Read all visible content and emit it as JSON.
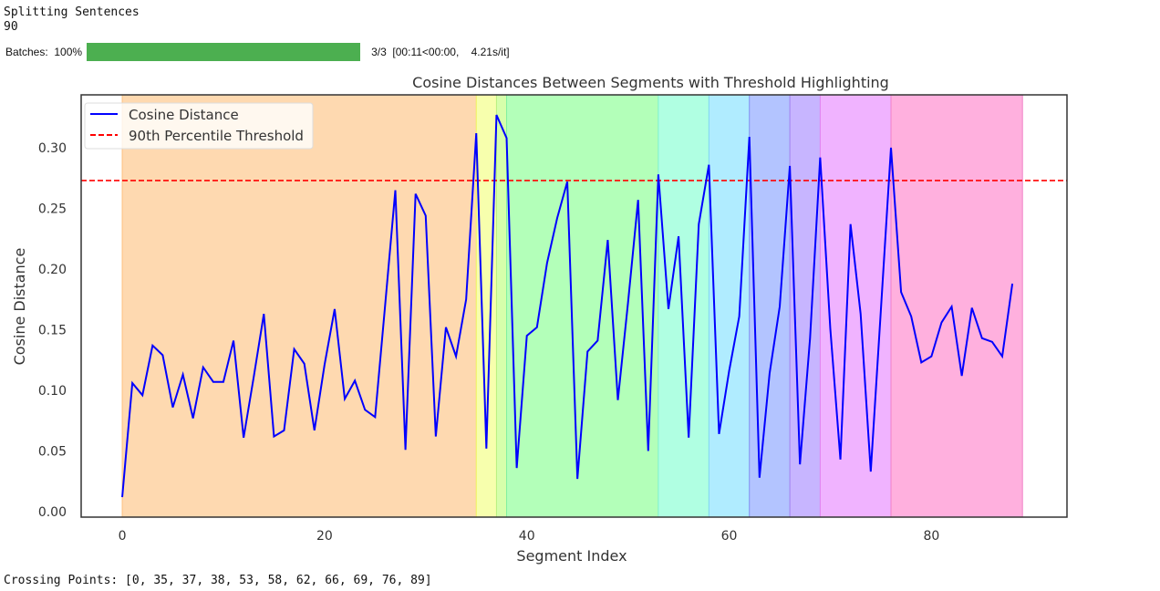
{
  "output": {
    "line1": "Splitting Sentences",
    "line2": "90",
    "progress": {
      "label": "Batches:",
      "percent_text": "100%",
      "percent": 100,
      "stats": "3/3  [00:11<00:00,    4.21s/it]",
      "color": "#4caf50"
    },
    "crossing_text": "Crossing Points: [0, 35, 37, 38, 53, 58, 62, 66, 69, 76, 89]"
  },
  "chart_data": {
    "type": "line",
    "title": "Cosine Distances Between Segments with Threshold Highlighting",
    "xlabel": "Segment Index",
    "ylabel": "Cosine Distance",
    "xlim": [
      -4.06,
      93.4
    ],
    "ylim": [
      -0.0045,
      0.3436
    ],
    "xticks": [
      0,
      20,
      40,
      60,
      80
    ],
    "xtick_labels": [
      "0",
      "20",
      "40",
      "60",
      "80"
    ],
    "yticks": [
      0,
      0.05,
      0.1,
      0.15,
      0.2,
      0.25,
      0.3
    ],
    "ytick_labels": [
      "0.00",
      "0.05",
      "0.10",
      "0.15",
      "0.20",
      "0.25",
      "0.30"
    ],
    "grid": false,
    "legend": {
      "placement": "top-left",
      "entries": [
        "Cosine Distance",
        "90th Percentile Threshold"
      ]
    },
    "series": [
      {
        "name": "Cosine Distance",
        "color": "#0000ff",
        "values": [
          0.012,
          0.106,
          0.096,
          0.137,
          0.129,
          0.086,
          0.113,
          0.077,
          0.119,
          0.107,
          0.107,
          0.141,
          0.061,
          0.111,
          0.163,
          0.062,
          0.067,
          0.134,
          0.122,
          0.067,
          0.121,
          0.167,
          0.093,
          0.108,
          0.084,
          0.078,
          0.171,
          0.265,
          0.051,
          0.262,
          0.244,
          0.062,
          0.152,
          0.128,
          0.175,
          0.312,
          0.052,
          0.327,
          0.308,
          0.036,
          0.145,
          0.152,
          0.205,
          0.242,
          0.272,
          0.027,
          0.132,
          0.141,
          0.224,
          0.092,
          0.172,
          0.257,
          0.05,
          0.278,
          0.167,
          0.227,
          0.061,
          0.237,
          0.286,
          0.064,
          0.116,
          0.161,
          0.309,
          0.028,
          0.114,
          0.169,
          0.285,
          0.039,
          0.143,
          0.292,
          0.151,
          0.043,
          0.237,
          0.163,
          0.033,
          0.166,
          0.3,
          0.181,
          0.161,
          0.123,
          0.128,
          0.156,
          0.169,
          0.112,
          0.168,
          0.143,
          0.14,
          0.128,
          0.188
        ]
      }
    ],
    "threshold": {
      "name": "90th Percentile Threshold",
      "value": 0.273,
      "color": "#ff0000",
      "style": "dashed"
    },
    "spans": {
      "boundaries": [
        0,
        35,
        37,
        38,
        53,
        58,
        62,
        66,
        69,
        76,
        89
      ],
      "colors": [
        "#fed9b0",
        "#f7ffad",
        "#d6ffab",
        "#b3ffb9",
        "#b0ffe2",
        "#b0ecff",
        "#b3c4ff",
        "#c7b5ff",
        "#f0b3ff",
        "#ffb0de"
      ],
      "edge_colors": [
        "#fdc080",
        "#f0f060",
        "#b8f080",
        "#80f0a0",
        "#80f0d0",
        "#80d8f0",
        "#8090f0",
        "#a080f0",
        "#e080f0",
        "#f080c8"
      ]
    }
  }
}
